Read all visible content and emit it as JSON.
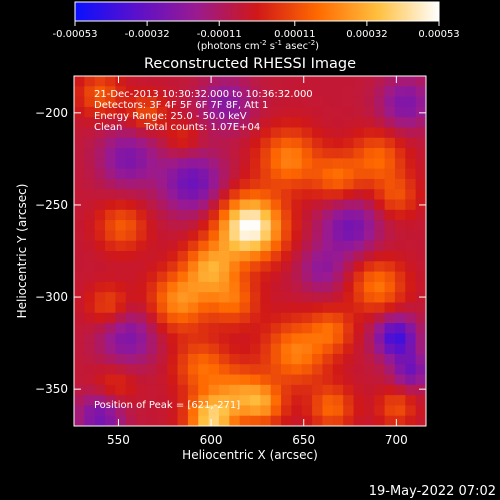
{
  "colorbar": {
    "ticks": [
      "-0.00053",
      "-0.00032",
      "-0.00011",
      "0.00011",
      "0.00032",
      "0.00053"
    ],
    "tick_values": [
      -0.00053,
      -0.00032,
      -0.00011,
      0.00011,
      0.00032,
      0.00053
    ],
    "units_main": "(photons cm",
    "units_sup1": "-2",
    "units_mid": " s",
    "units_sup2": "-1",
    "units_end": " asec",
    "units_sup3": "-2",
    "units_close": ")",
    "range": [
      -0.00053,
      0.00053
    ]
  },
  "image": {
    "title": "Reconstructed RHESSI Image",
    "info_lines": [
      "21-Dec-2013 10:30:32.000 to 10:36:32.000",
      "Detectors: 3F 4F 5F 6F 7F 8F, Att 1",
      "Energy Range: 25.0 - 50.0 keV"
    ],
    "clean_label": "Clean",
    "total_counts": "Total counts: 1.07E+04",
    "peak_label": "Position of Peak = [621,-271]"
  },
  "footer": {
    "timestamp": "19-May-2022 07:02"
  },
  "chart_data": {
    "type": "heatmap",
    "title": "Reconstructed RHESSI Image",
    "xlabel": "Heliocentric X (arcsec)",
    "ylabel": "Heliocentric Y (arcsec)",
    "xlim": [
      526,
      716
    ],
    "ylim": [
      -370,
      -180
    ],
    "xticks": [
      550,
      600,
      650,
      700
    ],
    "yticks": [
      -350,
      -300,
      -250,
      -200
    ],
    "xtick_labels": [
      "550",
      "600",
      "650",
      "700"
    ],
    "ytick_labels": [
      "−350",
      "−300",
      "−250",
      "−200"
    ],
    "peak": [
      621,
      -271
    ],
    "colormap_stops": [
      "#0a10ff",
      "#5a10cc",
      "#9a1a90",
      "#d01818",
      "#ff6a00",
      "#ffc040",
      "#ffffff"
    ],
    "blobs": [
      {
        "x": 621,
        "y": -262,
        "amp": 1.1,
        "sigma": 12
      },
      {
        "x": 600,
        "y": -284,
        "amp": 0.6,
        "sigma": 10
      },
      {
        "x": 583,
        "y": -302,
        "amp": 0.55,
        "sigma": 11
      },
      {
        "x": 612,
        "y": -302,
        "amp": 0.4,
        "sigma": 9
      },
      {
        "x": 642,
        "y": -225,
        "amp": 0.5,
        "sigma": 11
      },
      {
        "x": 668,
        "y": -235,
        "amp": 0.4,
        "sigma": 9
      },
      {
        "x": 690,
        "y": -225,
        "amp": 0.4,
        "sigma": 10
      },
      {
        "x": 700,
        "y": -245,
        "amp": 0.3,
        "sigma": 8
      },
      {
        "x": 690,
        "y": -294,
        "amp": 0.45,
        "sigma": 10
      },
      {
        "x": 665,
        "y": -318,
        "amp": 0.35,
        "sigma": 8
      },
      {
        "x": 646,
        "y": -330,
        "amp": 0.5,
        "sigma": 12
      },
      {
        "x": 595,
        "y": -338,
        "amp": 0.4,
        "sigma": 10
      },
      {
        "x": 615,
        "y": -352,
        "amp": 0.45,
        "sigma": 10
      },
      {
        "x": 600,
        "y": -366,
        "amp": 0.8,
        "sigma": 9
      },
      {
        "x": 628,
        "y": -358,
        "amp": 0.5,
        "sigma": 8
      },
      {
        "x": 665,
        "y": -360,
        "amp": 0.4,
        "sigma": 8
      },
      {
        "x": 700,
        "y": -360,
        "amp": 0.3,
        "sigma": 7
      },
      {
        "x": 552,
        "y": -262,
        "amp": 0.35,
        "sigma": 9
      },
      {
        "x": 545,
        "y": -305,
        "amp": 0.3,
        "sigma": 8
      },
      {
        "x": 548,
        "y": -348,
        "amp": 0.2,
        "sigma": 8
      },
      {
        "x": 540,
        "y": -190,
        "amp": 0.35,
        "sigma": 8
      },
      {
        "x": 565,
        "y": -200,
        "amp": 0.3,
        "sigma": 7
      },
      {
        "x": 585,
        "y": -215,
        "amp": 0.2,
        "sigma": 7
      },
      {
        "x": 555,
        "y": -225,
        "amp": -0.4,
        "sigma": 11
      },
      {
        "x": 590,
        "y": -238,
        "amp": -0.5,
        "sigma": 12
      },
      {
        "x": 675,
        "y": -262,
        "amp": -0.45,
        "sigma": 11
      },
      {
        "x": 700,
        "y": -322,
        "amp": -0.7,
        "sigma": 8
      },
      {
        "x": 708,
        "y": -340,
        "amp": -0.45,
        "sigma": 7
      },
      {
        "x": 555,
        "y": -322,
        "amp": -0.4,
        "sigma": 11
      },
      {
        "x": 540,
        "y": -365,
        "amp": -0.45,
        "sigma": 9
      },
      {
        "x": 705,
        "y": -195,
        "amp": -0.4,
        "sigma": 10
      },
      {
        "x": 608,
        "y": -195,
        "amp": -0.35,
        "sigma": 10
      },
      {
        "x": 660,
        "y": -285,
        "amp": -0.3,
        "sigma": 9
      }
    ]
  }
}
